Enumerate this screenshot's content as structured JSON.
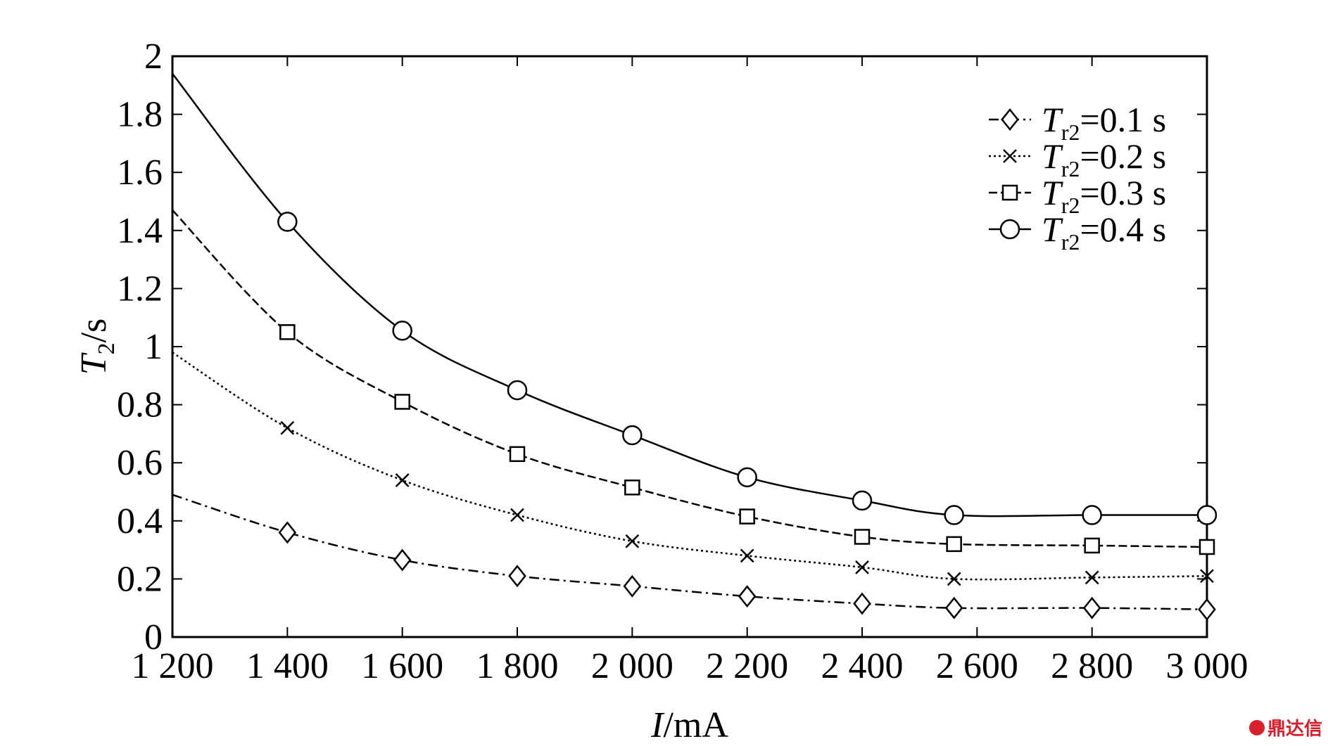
{
  "chart_data": {
    "type": "line",
    "xlabel_italic": "I",
    "xlabel_unit": "/mA",
    "ylabel_italic": "T",
    "ylabel_sub": "2",
    "ylabel_unit": "/s",
    "x": [
      1200,
      1400,
      1600,
      1800,
      2000,
      2200,
      2400,
      2560,
      2800,
      3000
    ],
    "xticks": [
      1200,
      1400,
      1600,
      1800,
      2000,
      2200,
      2400,
      2600,
      2800,
      3000
    ],
    "xtick_labels": [
      "1 200",
      "1 400",
      "1 600",
      "1 800",
      "2 000",
      "2 200",
      "2 400",
      "2 600",
      "2 800",
      "3 000"
    ],
    "xlim": [
      1200,
      3000
    ],
    "yticks": [
      0,
      0.2,
      0.4,
      0.6,
      0.8,
      1,
      1.2,
      1.4,
      1.6,
      1.8,
      2
    ],
    "ytick_labels": [
      "0",
      "0.2",
      "0.4",
      "0.6",
      "0.8",
      "1",
      "1.2",
      "1.4",
      "1.6",
      "1.8",
      "2"
    ],
    "ylim": [
      0,
      2
    ],
    "grid": false,
    "legend_position": "top-right",
    "series": [
      {
        "name": "T_r2=0.1 s",
        "legend_italic": "T",
        "legend_sub": "r2",
        "legend_rest": "=0.1 s",
        "marker": "diamond",
        "dash": "14,6,3,6",
        "values": [
          0.49,
          0.36,
          0.265,
          0.21,
          0.175,
          0.14,
          0.115,
          0.1,
          0.1,
          0.095
        ]
      },
      {
        "name": "T_r2=0.2 s",
        "legend_italic": "T",
        "legend_sub": "r2",
        "legend_rest": "=0.2 s",
        "marker": "cross",
        "dash": "3,4",
        "values": [
          0.98,
          0.72,
          0.54,
          0.42,
          0.33,
          0.28,
          0.24,
          0.2,
          0.205,
          0.21
        ]
      },
      {
        "name": "T_r2=0.3 s",
        "legend_italic": "T",
        "legend_sub": "r2",
        "legend_rest": "=0.3 s",
        "marker": "square",
        "dash": "12,5",
        "values": [
          1.47,
          1.05,
          0.81,
          0.63,
          0.515,
          0.415,
          0.345,
          0.32,
          0.315,
          0.31
        ]
      },
      {
        "name": "T_r2=0.4 s",
        "legend_italic": "T",
        "legend_sub": "r2",
        "legend_rest": "=0.4 s",
        "marker": "circle",
        "dash": "",
        "values": [
          1.94,
          1.43,
          1.055,
          0.85,
          0.695,
          0.55,
          0.47,
          0.42,
          0.42,
          0.42
        ]
      }
    ]
  },
  "watermark": {
    "text": "鼎达信"
  }
}
